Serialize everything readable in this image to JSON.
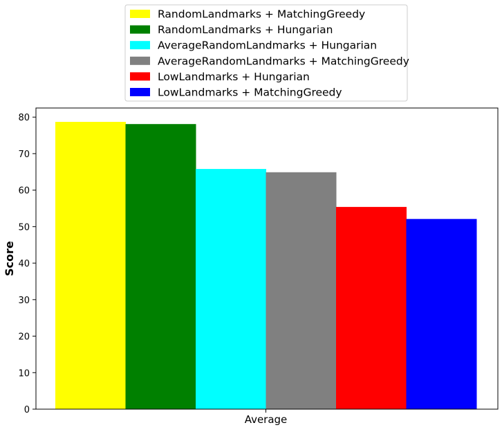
{
  "chart_data": {
    "type": "bar",
    "categories": [
      "Average"
    ],
    "series": [
      {
        "name": "RandomLandmarks + MatchingGreedy",
        "values": [
          78.7
        ],
        "color": "#ffff00"
      },
      {
        "name": "RandomLandmarks + Hungarian",
        "values": [
          78.1
        ],
        "color": "#008000"
      },
      {
        "name": "AverageRandomLandmarks + Hungarian",
        "values": [
          65.8
        ],
        "color": "#00ffff"
      },
      {
        "name": "AverageRandomLandmarks + MatchingGreedy",
        "values": [
          64.9
        ],
        "color": "#808080"
      },
      {
        "name": "LowLandmarks + Hungarian",
        "values": [
          55.4
        ],
        "color": "#ff0000"
      },
      {
        "name": "LowLandmarks + MatchingGreedy",
        "values": [
          52.1
        ],
        "color": "#0000ff"
      }
    ],
    "title": "",
    "xlabel": "",
    "ylabel": "Score",
    "ylim": [
      0,
      82.5
    ],
    "yticks": [
      0,
      10,
      20,
      30,
      40,
      50,
      60,
      70,
      80
    ],
    "grid": false,
    "legend_position": "top-center"
  }
}
